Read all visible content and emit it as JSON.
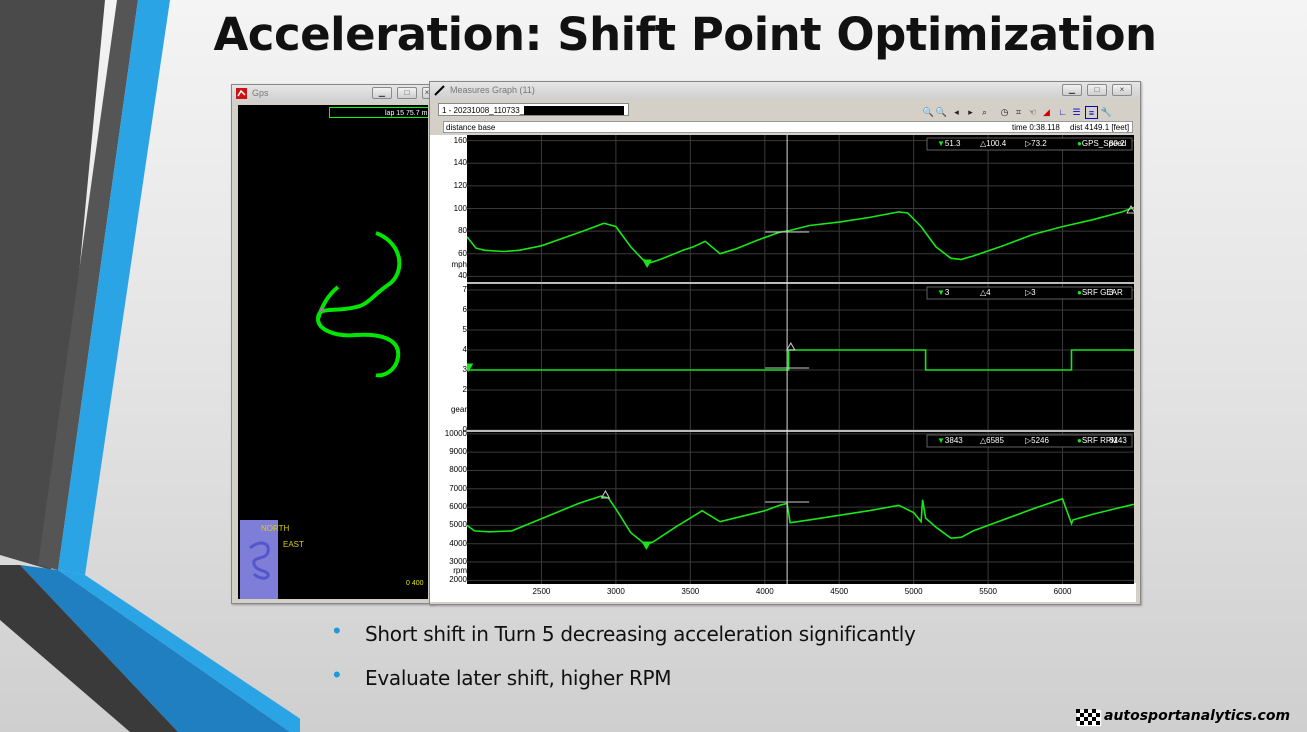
{
  "slide": {
    "title": "Acceleration: Shift Point Optimization",
    "bullets": [
      "Short shift in Turn 5 decreasing acceleration significantly",
      "Evaluate later shift, higher RPM"
    ],
    "brand": "autosportanalytics.com"
  },
  "gps_window": {
    "title": "Gps",
    "lap_label": "lap 15 75.7 m",
    "compass_north": "NORTH",
    "compass_east": "EAST",
    "scale_label": "0  400"
  },
  "graph_window": {
    "title": "Measures Graph (11)",
    "file_prefix": "1 - 20231008_110733_",
    "axis_base": "distance base",
    "time_readout": "time 0:38.118",
    "dist_readout": "dist 4149.1 [feet]",
    "x_ticks": [
      "2500",
      "3000",
      "3500",
      "4000",
      "4500",
      "5000",
      "5500",
      "6000"
    ],
    "panels": [
      {
        "name": "GPS_Speed",
        "unit": "mph",
        "y_ticks": [
          "160",
          "140",
          "120",
          "100",
          "80",
          "60",
          "40"
        ],
        "min_marker": "51.3",
        "max_marker": "100.4",
        "cursor_value": "73.2",
        "current_value": "80.2"
      },
      {
        "name": "SRF GEAR",
        "unit": "gear",
        "y_ticks": [
          "7",
          "6",
          "5",
          "4",
          "3",
          "2",
          "0"
        ],
        "min_marker": "3",
        "max_marker": "4",
        "cursor_value": "3",
        "current_value": "3"
      },
      {
        "name": "SRF RPM",
        "unit": "rpm",
        "y_ticks": [
          "10000",
          "9000",
          "8000",
          "7000",
          "6000",
          "5000",
          "4000",
          "3000",
          "2000"
        ],
        "min_marker": "3843",
        "max_marker": "6585",
        "cursor_value": "5246",
        "current_value": "6143"
      }
    ]
  },
  "chart_data": [
    {
      "type": "line",
      "title": "",
      "xlabel": "distance base",
      "ylabel": "mph",
      "xlim": [
        2000,
        6480
      ],
      "ylim": [
        35,
        165
      ],
      "series": [
        {
          "name": "GPS_Speed",
          "color": "#19e619",
          "x": [
            2000,
            2060,
            2120,
            2250,
            2350,
            2500,
            2650,
            2800,
            2920,
            3000,
            3100,
            3180,
            3230,
            3300,
            3450,
            3520,
            3600,
            3700,
            3800,
            3950,
            4100,
            4150,
            4300,
            4500,
            4700,
            4900,
            4960,
            5050,
            5150,
            5250,
            5320,
            5400,
            5600,
            5800,
            6000,
            6200,
            6400,
            6480
          ],
          "y": [
            75,
            65,
            63,
            62,
            63,
            67,
            74,
            81,
            87,
            84,
            66,
            55,
            52,
            55,
            63,
            66,
            71,
            60,
            64,
            72,
            79,
            80,
            85,
            88,
            92,
            97,
            96,
            84,
            66,
            56,
            55,
            58,
            67,
            77,
            84,
            90,
            97,
            101
          ]
        }
      ]
    },
    {
      "type": "line",
      "title": "",
      "xlabel": "distance base",
      "ylabel": "gear",
      "xlim": [
        2000,
        6480
      ],
      "ylim": [
        0,
        7.3
      ],
      "series": [
        {
          "name": "SRF GEAR",
          "color": "#19e619",
          "x": [
            2000,
            4160,
            4160,
            5080,
            5080,
            6060,
            6060,
            6480
          ],
          "y": [
            3,
            3,
            4,
            4,
            3,
            3,
            4,
            4
          ]
        }
      ]
    },
    {
      "type": "line",
      "title": "",
      "xlabel": "distance base",
      "ylabel": "rpm",
      "xlim": [
        2000,
        6480
      ],
      "ylim": [
        1800,
        10100
      ],
      "series": [
        {
          "name": "SRF RPM",
          "color": "#19e619",
          "x": [
            2000,
            2050,
            2150,
            2300,
            2450,
            2600,
            2750,
            2900,
            2950,
            3000,
            3100,
            3200,
            3250,
            3400,
            3500,
            3580,
            3620,
            3700,
            3850,
            4000,
            4100,
            4150,
            4170,
            4300,
            4500,
            4700,
            4900,
            5000,
            5050,
            5060,
            5080,
            5150,
            5250,
            5320,
            5400,
            5600,
            5800,
            6000,
            6060,
            6070,
            6200,
            6350,
            6480
          ],
          "y": [
            5000,
            4700,
            4650,
            4700,
            5200,
            5700,
            6200,
            6600,
            6500,
            5900,
            4600,
            3950,
            4100,
            4900,
            5400,
            5800,
            5600,
            5200,
            5500,
            5800,
            6100,
            6200,
            5150,
            5300,
            5550,
            5800,
            6100,
            5700,
            5200,
            6400,
            5400,
            4900,
            4300,
            4350,
            4700,
            5300,
            5900,
            6450,
            5100,
            5300,
            5600,
            5900,
            6150
          ]
        }
      ]
    }
  ]
}
